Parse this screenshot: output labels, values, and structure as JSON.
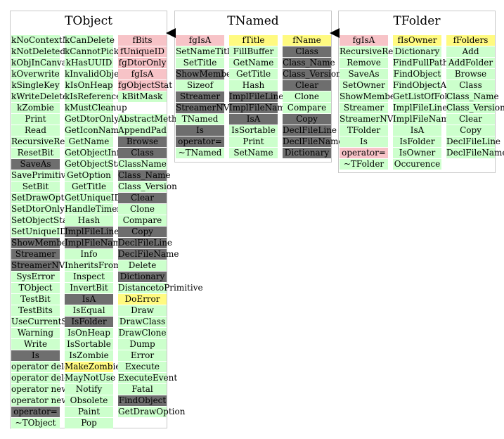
{
  "classes": [
    {
      "name": "TObject",
      "columns": [
        [
          {
            "t": "kNoContextMenu",
            "c": "m"
          },
          {
            "t": "kNotDeleted",
            "c": "m"
          },
          {
            "t": "kObjInCanvas",
            "c": "m"
          },
          {
            "t": "kOverwrite",
            "c": "m"
          },
          {
            "t": "kSingleKey",
            "c": "m"
          },
          {
            "t": "kWriteDelete",
            "c": "m"
          },
          {
            "t": "kZombie",
            "c": "m"
          },
          {
            "t": "Print",
            "c": "m"
          },
          {
            "t": "Read",
            "c": "m"
          },
          {
            "t": "RecursiveRemove",
            "c": "m"
          },
          {
            "t": "ResetBit",
            "c": "m"
          },
          {
            "t": "SaveAs",
            "c": "d"
          },
          {
            "t": "SavePrimitive",
            "c": "m"
          },
          {
            "t": "SetBit",
            "c": "m"
          },
          {
            "t": "SetDrawOption",
            "c": "m"
          },
          {
            "t": "SetDtorOnly",
            "c": "m"
          },
          {
            "t": "SetObjectStat",
            "c": "m"
          },
          {
            "t": "SetUniqueID",
            "c": "m"
          },
          {
            "t": "ShowMembers",
            "c": "d"
          },
          {
            "t": "Streamer",
            "c": "d"
          },
          {
            "t": "StreamerNVirtual",
            "c": "d"
          },
          {
            "t": "SysError",
            "c": "m"
          },
          {
            "t": "TObject",
            "c": "m"
          },
          {
            "t": "TestBit",
            "c": "m"
          },
          {
            "t": "TestBits",
            "c": "m"
          },
          {
            "t": "UseCurrentStyle",
            "c": "m"
          },
          {
            "t": "Warning",
            "c": "m"
          },
          {
            "t": "Write",
            "c": "m"
          },
          {
            "t": "Is",
            "c": "d"
          },
          {
            "t": "operator delete",
            "c": "m"
          },
          {
            "t": "operator delete[]",
            "c": "m"
          },
          {
            "t": "operator new",
            "c": "m"
          },
          {
            "t": "operator new[]",
            "c": "m"
          },
          {
            "t": "operator=",
            "c": "d"
          },
          {
            "t": "~TObject",
            "c": "m"
          }
        ],
        [
          {
            "t": "kCanDelete",
            "c": "m"
          },
          {
            "t": "kCannotPick",
            "c": "m"
          },
          {
            "t": "kHasUUID",
            "c": "m"
          },
          {
            "t": "kInvalidObject",
            "c": "m"
          },
          {
            "t": "kIsOnHeap",
            "c": "m"
          },
          {
            "t": "kIsReferenced",
            "c": "m"
          },
          {
            "t": "kMustCleanup",
            "c": "m"
          },
          {
            "t": "GetDtorOnly",
            "c": "m"
          },
          {
            "t": "GetIconName",
            "c": "m"
          },
          {
            "t": "GetName",
            "c": "m"
          },
          {
            "t": "GetObjectInfo",
            "c": "m"
          },
          {
            "t": "GetObjectStat",
            "c": "m"
          },
          {
            "t": "GetOption",
            "c": "m"
          },
          {
            "t": "GetTitle",
            "c": "m"
          },
          {
            "t": "GetUniqueID",
            "c": "m"
          },
          {
            "t": "HandleTimer",
            "c": "m"
          },
          {
            "t": "Hash",
            "c": "m"
          },
          {
            "t": "ImplFileLine",
            "c": "d"
          },
          {
            "t": "ImplFileName",
            "c": "d"
          },
          {
            "t": "Info",
            "c": "m"
          },
          {
            "t": "InheritsFrom",
            "c": "m"
          },
          {
            "t": "Inspect",
            "c": "m"
          },
          {
            "t": "InvertBit",
            "c": "m"
          },
          {
            "t": "IsA",
            "c": "d"
          },
          {
            "t": "IsEqual",
            "c": "m"
          },
          {
            "t": "IsFolder",
            "c": "d"
          },
          {
            "t": "IsOnHeap",
            "c": "m"
          },
          {
            "t": "IsSortable",
            "c": "m"
          },
          {
            "t": "IsZombie",
            "c": "m"
          },
          {
            "t": "MakeZombie",
            "c": "y"
          },
          {
            "t": "MayNotUse",
            "c": "m"
          },
          {
            "t": "Notify",
            "c": "m"
          },
          {
            "t": "Obsolete",
            "c": "m"
          },
          {
            "t": "Paint",
            "c": "m"
          },
          {
            "t": "Pop",
            "c": "m"
          }
        ],
        [
          {
            "t": "fBits",
            "c": "p"
          },
          {
            "t": "fUniqueID",
            "c": "p"
          },
          {
            "t": "fgDtorOnly",
            "c": "p"
          },
          {
            "t": "fgIsA",
            "c": "p"
          },
          {
            "t": "fgObjectStat",
            "c": "p"
          },
          {
            "t": "kBitMask",
            "c": "m"
          },
          {
            "t": "",
            "c": "w"
          },
          {
            "t": "AbstractMethod",
            "c": "m"
          },
          {
            "t": "AppendPad",
            "c": "m"
          },
          {
            "t": "Browse",
            "c": "d"
          },
          {
            "t": "Class",
            "c": "d"
          },
          {
            "t": "ClassName",
            "c": "m"
          },
          {
            "t": "Class_Name",
            "c": "d"
          },
          {
            "t": "Class_Version",
            "c": "m"
          },
          {
            "t": "Clear",
            "c": "d"
          },
          {
            "t": "Clone",
            "c": "m"
          },
          {
            "t": "Compare",
            "c": "m"
          },
          {
            "t": "Copy",
            "c": "d"
          },
          {
            "t": "DeclFileLine",
            "c": "d"
          },
          {
            "t": "DeclFileName",
            "c": "d"
          },
          {
            "t": "Delete",
            "c": "m"
          },
          {
            "t": "Dictionary",
            "c": "d"
          },
          {
            "t": "DistancetoPrimitive",
            "c": "m"
          },
          {
            "t": "DoError",
            "c": "y"
          },
          {
            "t": "Draw",
            "c": "m"
          },
          {
            "t": "DrawClass",
            "c": "m"
          },
          {
            "t": "DrawClone",
            "c": "m"
          },
          {
            "t": "Dump",
            "c": "m"
          },
          {
            "t": "Error",
            "c": "m"
          },
          {
            "t": "Execute",
            "c": "m"
          },
          {
            "t": "ExecuteEvent",
            "c": "m"
          },
          {
            "t": "Fatal",
            "c": "m"
          },
          {
            "t": "FindObject",
            "c": "d"
          },
          {
            "t": "GetDrawOption",
            "c": "m"
          }
        ]
      ]
    },
    {
      "name": "TNamed",
      "columns": [
        [
          {
            "t": "fgIsA",
            "c": "p"
          },
          {
            "t": "SetNameTitle",
            "c": "m"
          },
          {
            "t": "SetTitle",
            "c": "m"
          },
          {
            "t": "ShowMembers",
            "c": "d"
          },
          {
            "t": "Sizeof",
            "c": "m"
          },
          {
            "t": "Streamer",
            "c": "d"
          },
          {
            "t": "StreamerNVirtual",
            "c": "d"
          },
          {
            "t": "TNamed",
            "c": "m"
          },
          {
            "t": "Is",
            "c": "d"
          },
          {
            "t": "operator=",
            "c": "d"
          },
          {
            "t": "~TNamed",
            "c": "m"
          }
        ],
        [
          {
            "t": "fTitle",
            "c": "y"
          },
          {
            "t": "FillBuffer",
            "c": "m"
          },
          {
            "t": "GetName",
            "c": "m"
          },
          {
            "t": "GetTitle",
            "c": "m"
          },
          {
            "t": "Hash",
            "c": "m"
          },
          {
            "t": "ImplFileLine",
            "c": "d"
          },
          {
            "t": "ImplFileName",
            "c": "d"
          },
          {
            "t": "IsA",
            "c": "d"
          },
          {
            "t": "IsSortable",
            "c": "m"
          },
          {
            "t": "Print",
            "c": "m"
          },
          {
            "t": "SetName",
            "c": "m"
          }
        ],
        [
          {
            "t": "fName",
            "c": "y"
          },
          {
            "t": "Class",
            "c": "d"
          },
          {
            "t": "Class_Name",
            "c": "d"
          },
          {
            "t": "Class_Version",
            "c": "d"
          },
          {
            "t": "Clear",
            "c": "d"
          },
          {
            "t": "Clone",
            "c": "m"
          },
          {
            "t": "Compare",
            "c": "m"
          },
          {
            "t": "Copy",
            "c": "d"
          },
          {
            "t": "DeclFileLine",
            "c": "d"
          },
          {
            "t": "DeclFileName",
            "c": "d"
          },
          {
            "t": "Dictionary",
            "c": "d"
          }
        ]
      ]
    },
    {
      "name": "TFolder",
      "columns": [
        [
          {
            "t": "fgIsA",
            "c": "p"
          },
          {
            "t": "RecursiveRemove",
            "c": "m"
          },
          {
            "t": "Remove",
            "c": "m"
          },
          {
            "t": "SaveAs",
            "c": "m"
          },
          {
            "t": "SetOwner",
            "c": "m"
          },
          {
            "t": "ShowMembers",
            "c": "m"
          },
          {
            "t": "Streamer",
            "c": "m"
          },
          {
            "t": "StreamerNVirtual",
            "c": "m"
          },
          {
            "t": "TFolder",
            "c": "m"
          },
          {
            "t": "Is",
            "c": "m"
          },
          {
            "t": "operator=",
            "c": "p"
          },
          {
            "t": "~TFolder",
            "c": "m"
          }
        ],
        [
          {
            "t": "fIsOwner",
            "c": "y"
          },
          {
            "t": "Dictionary",
            "c": "m"
          },
          {
            "t": "FindFullPathName",
            "c": "m"
          },
          {
            "t": "FindObject",
            "c": "m"
          },
          {
            "t": "FindObjectAny",
            "c": "m"
          },
          {
            "t": "GetListOfFolders",
            "c": "m"
          },
          {
            "t": "ImplFileLine",
            "c": "m"
          },
          {
            "t": "ImplFileName",
            "c": "m"
          },
          {
            "t": "IsA",
            "c": "m"
          },
          {
            "t": "IsFolder",
            "c": "m"
          },
          {
            "t": "IsOwner",
            "c": "m"
          },
          {
            "t": "Occurence",
            "c": "m"
          }
        ],
        [
          {
            "t": "fFolders",
            "c": "y"
          },
          {
            "t": "Add",
            "c": "m"
          },
          {
            "t": "AddFolder",
            "c": "m"
          },
          {
            "t": "Browse",
            "c": "m"
          },
          {
            "t": "Class",
            "c": "m"
          },
          {
            "t": "Class_Name",
            "c": "m"
          },
          {
            "t": "Class_Version",
            "c": "m"
          },
          {
            "t": "Clear",
            "c": "m"
          },
          {
            "t": "Copy",
            "c": "m"
          },
          {
            "t": "DeclFileLine",
            "c": "m"
          },
          {
            "t": "DeclFileName",
            "c": "m"
          }
        ]
      ]
    }
  ],
  "colors": {
    "method": "#ccffcc",
    "inherited": "#6e6e6e",
    "private_member": "#f7c3c7",
    "data_member": "#fffa80",
    "border": "#c8c8c8",
    "arrow": "#000000"
  }
}
